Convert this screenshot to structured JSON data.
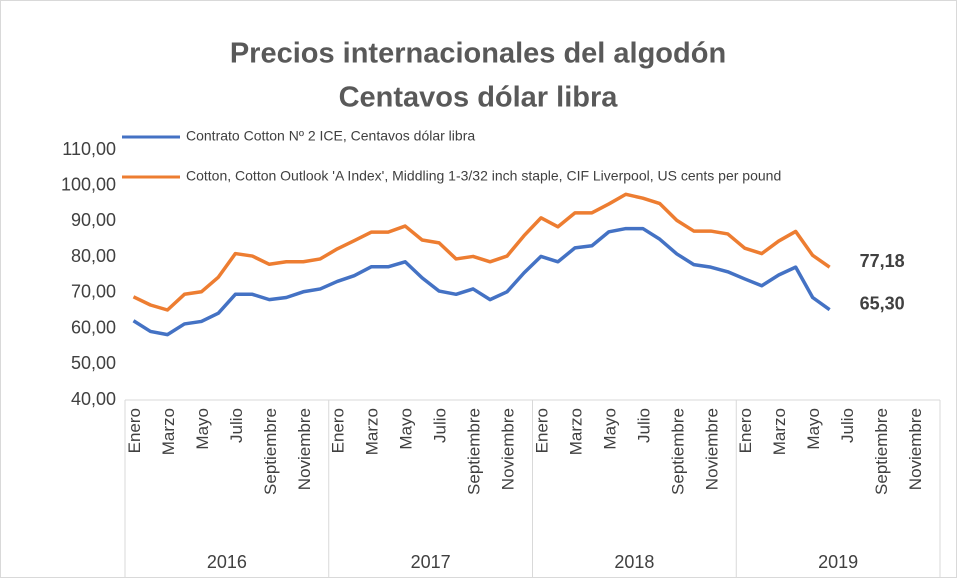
{
  "chart_data": {
    "type": "line",
    "title": [
      "Precios internacionales del algodón",
      "Centavos dólar libra"
    ],
    "categories": [
      "Enero",
      null,
      "Marzo",
      null,
      "Mayo",
      null,
      "Julio",
      null,
      "Septiembre",
      null,
      "Noviembre",
      null,
      "Enero",
      null,
      "Marzo",
      null,
      "Mayo",
      null,
      "Julio",
      null,
      "Septiembre",
      null,
      "Noviembre",
      null,
      "Enero",
      null,
      "Marzo",
      null,
      "Mayo",
      null,
      "Julio",
      null,
      "Septiembre",
      null,
      "Noviembre",
      null,
      "Enero",
      null,
      "Marzo",
      null,
      "Mayo",
      null,
      "Julio",
      null,
      "Septiembre",
      null,
      "Noviembre",
      null
    ],
    "groups": [
      "2016",
      "2017",
      "2018",
      "2019"
    ],
    "series": [
      {
        "name": "Contrato Cotton Nº 2 ICE, Centavos dólar libra",
        "color": "#4472c4",
        "values": [
          62.2,
          59.2,
          58.3,
          61.3,
          62.0,
          64.3,
          69.6,
          69.6,
          68.1,
          68.7,
          70.3,
          71.1,
          73.2,
          74.8,
          77.3,
          77.3,
          78.7,
          74.2,
          70.5,
          69.6,
          71.1,
          68.1,
          70.3,
          75.6,
          80.2,
          78.7,
          82.6,
          83.2,
          87.1,
          88.0,
          88.0,
          85.0,
          80.9,
          77.9,
          77.2,
          75.9,
          73.9,
          72.0,
          75.0,
          77.2,
          68.7,
          65.3,
          null,
          null,
          null,
          null,
          null,
          null
        ],
        "value_labels": [
          null,
          null,
          null,
          null,
          null,
          null,
          null,
          null,
          null,
          null,
          null,
          null,
          null,
          null,
          null,
          null,
          null,
          null,
          null,
          null,
          null,
          null,
          null,
          null,
          null,
          null,
          null,
          null,
          null,
          null,
          null,
          null,
          null,
          null,
          null,
          null,
          null,
          null,
          null,
          null,
          null,
          "65,30",
          null,
          null,
          null,
          null,
          null,
          null
        ]
      },
      {
        "name": "Cotton, Cotton Outlook 'A Index', Middling 1-3/32 inch staple, CIF Liverpool, US cents per pound",
        "color": "#ed7d31",
        "values": [
          68.9,
          66.6,
          65.2,
          69.6,
          70.3,
          74.4,
          81.0,
          80.3,
          78.0,
          78.7,
          78.7,
          79.5,
          82.3,
          84.6,
          87.0,
          87.0,
          88.7,
          84.8,
          84.0,
          79.5,
          80.2,
          78.7,
          80.3,
          86.0,
          91.0,
          88.5,
          92.4,
          92.4,
          94.9,
          97.6,
          96.5,
          95.0,
          90.3,
          87.3,
          87.3,
          86.5,
          82.5,
          81.0,
          84.5,
          87.2,
          80.5,
          77.18,
          null,
          null,
          null,
          null,
          null,
          null
        ],
        "value_labels": [
          null,
          null,
          null,
          null,
          null,
          null,
          null,
          null,
          null,
          null,
          null,
          null,
          null,
          null,
          null,
          null,
          null,
          null,
          null,
          null,
          null,
          null,
          null,
          null,
          null,
          null,
          null,
          null,
          null,
          null,
          null,
          null,
          null,
          null,
          null,
          null,
          null,
          null,
          null,
          null,
          null,
          "77,18",
          null,
          null,
          null,
          null,
          null,
          null
        ]
      }
    ],
    "ylim": [
      40,
      110
    ],
    "yticks": [
      {
        "value": 40,
        "label": "40,00"
      },
      {
        "value": 50,
        "label": "50,00"
      },
      {
        "value": 60,
        "label": "60,00"
      },
      {
        "value": 70,
        "label": "70,00"
      },
      {
        "value": 80,
        "label": "80,00"
      },
      {
        "value": 90,
        "label": "90,00"
      },
      {
        "value": 100,
        "label": "100,00"
      },
      {
        "value": 110,
        "label": "110,00"
      }
    ],
    "grid": false,
    "legend": "top-left"
  }
}
